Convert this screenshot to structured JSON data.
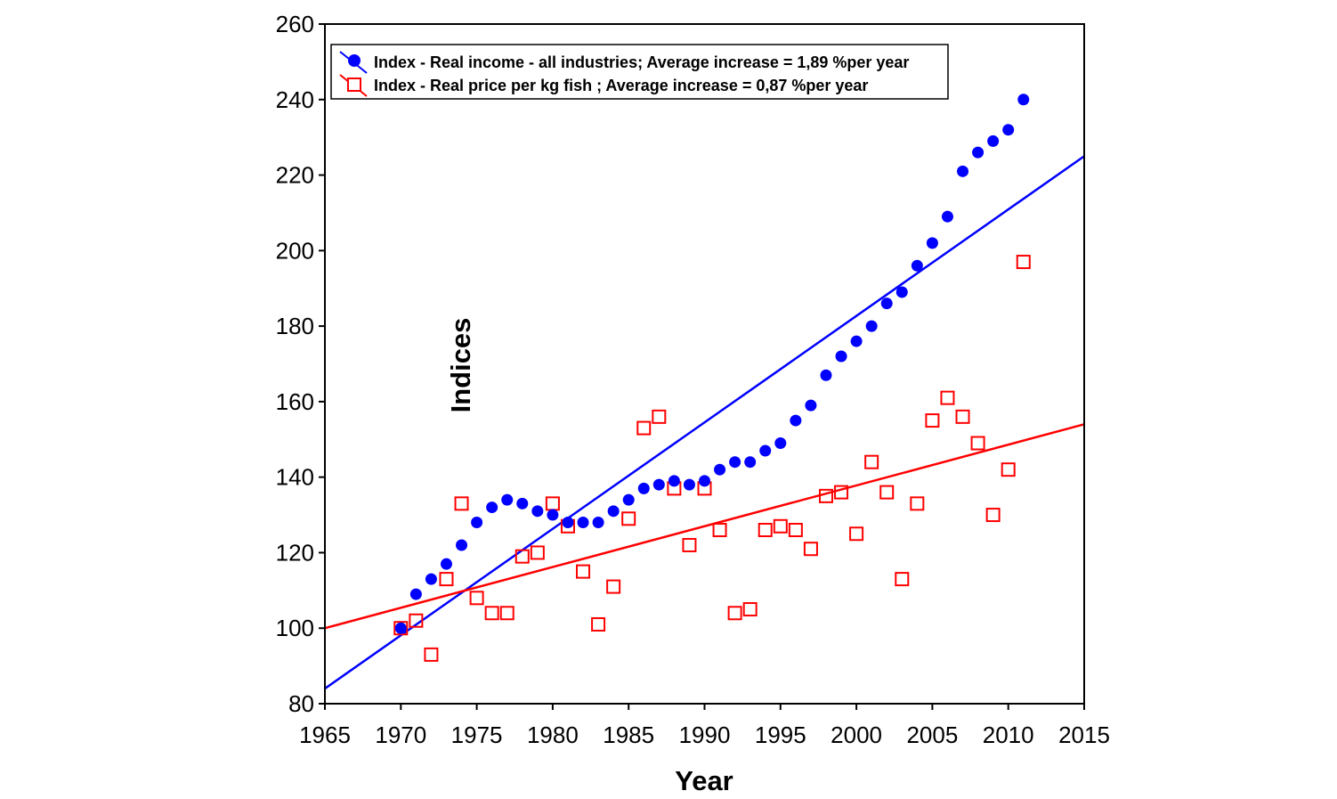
{
  "chart_data": {
    "type": "scatter",
    "xlabel": "Year",
    "ylabel": "Indices",
    "xlim": [
      1965,
      2015
    ],
    "ylim": [
      80,
      260
    ],
    "xticks": [
      1965,
      1970,
      1975,
      1980,
      1985,
      1990,
      1995,
      2000,
      2005,
      2010,
      2015
    ],
    "yticks": [
      80,
      100,
      120,
      140,
      160,
      180,
      200,
      220,
      240,
      260
    ],
    "grid": false,
    "legend_position": "top-left",
    "series": [
      {
        "name": "Index - Real income  - all industries; Average increase = 1,89 %per year",
        "color": "#0000ff",
        "marker": "filled-circle",
        "x": [
          1970,
          1971,
          1972,
          1973,
          1974,
          1975,
          1976,
          1977,
          1978,
          1979,
          1980,
          1981,
          1982,
          1983,
          1984,
          1985,
          1986,
          1987,
          1988,
          1989,
          1990,
          1991,
          1992,
          1993,
          1994,
          1995,
          1996,
          1997,
          1998,
          1999,
          2000,
          2001,
          2002,
          2003,
          2004,
          2005,
          2006,
          2007,
          2008,
          2009,
          2010,
          2011
        ],
        "y": [
          100,
          109,
          113,
          117,
          122,
          128,
          132,
          134,
          133,
          131,
          130,
          128,
          128,
          128,
          131,
          134,
          137,
          138,
          139,
          138,
          139,
          142,
          144,
          144,
          147,
          149,
          155,
          159,
          167,
          172,
          176,
          180,
          186,
          189,
          196,
          202,
          209,
          221,
          226,
          229,
          232,
          240
        ],
        "trendline": {
          "x": [
            1965,
            2015
          ],
          "y": [
            84,
            225
          ]
        }
      },
      {
        "name": "Index - Real price per kg fish ; Average increase = 0,87 %per year",
        "color": "#ff0000",
        "marker": "open-square",
        "x": [
          1970,
          1971,
          1972,
          1973,
          1974,
          1975,
          1976,
          1977,
          1978,
          1979,
          1980,
          1981,
          1982,
          1983,
          1984,
          1985,
          1986,
          1987,
          1988,
          1989,
          1990,
          1991,
          1992,
          1993,
          1994,
          1995,
          1996,
          1997,
          1998,
          1999,
          2000,
          2001,
          2002,
          2003,
          2004,
          2005,
          2006,
          2007,
          2008,
          2009,
          2010,
          2011
        ],
        "y": [
          100,
          102,
          93,
          113,
          133,
          108,
          104,
          104,
          119,
          120,
          133,
          127,
          115,
          101,
          111,
          129,
          153,
          156,
          137,
          122,
          137,
          126,
          104,
          105,
          126,
          127,
          126,
          121,
          135,
          136,
          125,
          144,
          136,
          113,
          133,
          155,
          161,
          156,
          149,
          130,
          142,
          197
        ],
        "trendline": {
          "x": [
            1965,
            2015
          ],
          "y": [
            100,
            154
          ]
        }
      }
    ]
  }
}
